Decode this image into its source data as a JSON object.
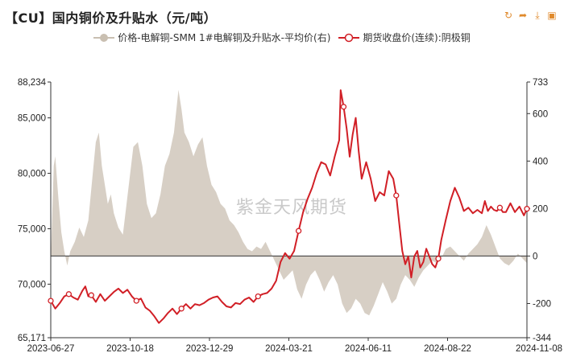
{
  "title": "【CU】国内铜价及升贴水（元/吨）",
  "toolbar": {
    "icons": [
      "refresh-icon",
      "share-icon",
      "download-icon",
      "image-icon"
    ],
    "color": "#e08a2c"
  },
  "watermark": "紫金天风期货",
  "chart_data": {
    "type": "line",
    "legend_position": "top-center",
    "grid": false,
    "x_tick_labels": [
      "2023-06-27",
      "2023-10-18",
      "2023-12-29",
      "2024-03-21",
      "2024-06-11",
      "2024-08-22",
      "2024-11-08"
    ],
    "left_axis": {
      "ylim": [
        65171,
        88234
      ],
      "tick_labels": [
        "65,171",
        "70,000",
        "75,000",
        "80,000",
        "85,000",
        "88,234"
      ]
    },
    "right_axis": {
      "ylim": [
        -344,
        733
      ],
      "tick_labels": [
        "-344",
        "-200",
        "0",
        "200",
        "400",
        "600",
        "733"
      ]
    },
    "series": [
      {
        "name": "价格-电解铜-SMM 1#电解铜及升贴水-平均价(右)",
        "type": "area",
        "axis": "right",
        "color": "#c9bfb1",
        "points": [
          [
            0,
            -20
          ],
          [
            2,
            380
          ],
          [
            3,
            420
          ],
          [
            5,
            250
          ],
          [
            7,
            100
          ],
          [
            9,
            20
          ],
          [
            11,
            -40
          ],
          [
            13,
            20
          ],
          [
            16,
            60
          ],
          [
            19,
            120
          ],
          [
            22,
            80
          ],
          [
            25,
            150
          ],
          [
            28,
            350
          ],
          [
            30,
            480
          ],
          [
            32,
            520
          ],
          [
            34,
            380
          ],
          [
            36,
            300
          ],
          [
            38,
            220
          ],
          [
            40,
            260
          ],
          [
            42,
            180
          ],
          [
            45,
            120
          ],
          [
            48,
            90
          ],
          [
            52,
            300
          ],
          [
            55,
            460
          ],
          [
            58,
            480
          ],
          [
            61,
            380
          ],
          [
            64,
            220
          ],
          [
            67,
            160
          ],
          [
            70,
            180
          ],
          [
            73,
            260
          ],
          [
            76,
            380
          ],
          [
            79,
            430
          ],
          [
            82,
            520
          ],
          [
            85,
            700
          ],
          [
            87,
            620
          ],
          [
            89,
            520
          ],
          [
            92,
            480
          ],
          [
            95,
            420
          ],
          [
            98,
            470
          ],
          [
            101,
            500
          ],
          [
            104,
            380
          ],
          [
            107,
            300
          ],
          [
            110,
            270
          ],
          [
            113,
            220
          ],
          [
            116,
            200
          ],
          [
            119,
            150
          ],
          [
            122,
            130
          ],
          [
            125,
            100
          ],
          [
            128,
            60
          ],
          [
            131,
            30
          ],
          [
            134,
            20
          ],
          [
            137,
            40
          ],
          [
            140,
            30
          ],
          [
            143,
            60
          ],
          [
            146,
            20
          ],
          [
            149,
            -20
          ],
          [
            152,
            -60
          ],
          [
            155,
            -100
          ],
          [
            158,
            -80
          ],
          [
            161,
            -60
          ],
          [
            164,
            -140
          ],
          [
            167,
            -180
          ],
          [
            170,
            -120
          ],
          [
            173,
            -80
          ],
          [
            176,
            -60
          ],
          [
            179,
            -100
          ],
          [
            182,
            -150
          ],
          [
            185,
            -110
          ],
          [
            188,
            -80
          ],
          [
            191,
            -120
          ],
          [
            194,
            -200
          ],
          [
            197,
            -240
          ],
          [
            200,
            -220
          ],
          [
            203,
            -180
          ],
          [
            206,
            -200
          ],
          [
            209,
            -240
          ],
          [
            212,
            -250
          ],
          [
            215,
            -210
          ],
          [
            218,
            -160
          ],
          [
            221,
            -110
          ],
          [
            224,
            -150
          ],
          [
            227,
            -200
          ],
          [
            230,
            -180
          ],
          [
            233,
            -120
          ],
          [
            236,
            -80
          ],
          [
            239,
            -100
          ],
          [
            242,
            -130
          ],
          [
            245,
            -90
          ],
          [
            248,
            -60
          ],
          [
            251,
            -40
          ],
          [
            254,
            -20
          ],
          [
            257,
            -30
          ],
          [
            260,
            -10
          ],
          [
            263,
            30
          ],
          [
            266,
            40
          ],
          [
            269,
            20
          ],
          [
            272,
            0
          ],
          [
            275,
            -20
          ],
          [
            278,
            10
          ],
          [
            281,
            30
          ],
          [
            284,
            50
          ],
          [
            287,
            80
          ],
          [
            290,
            130
          ],
          [
            293,
            90
          ],
          [
            296,
            40
          ],
          [
            299,
            -10
          ],
          [
            302,
            -30
          ],
          [
            305,
            -40
          ],
          [
            308,
            -20
          ],
          [
            311,
            10
          ],
          [
            314,
            -10
          ],
          [
            317,
            -30
          ]
        ]
      },
      {
        "name": "期货收盘价(连续):阴极铜",
        "type": "line",
        "axis": "left",
        "color": "#d11f26",
        "points": [
          [
            0,
            68500
          ],
          [
            3,
            67800
          ],
          [
            6,
            68300
          ],
          [
            9,
            68900
          ],
          [
            12,
            69100
          ],
          [
            15,
            68800
          ],
          [
            18,
            68600
          ],
          [
            21,
            69400
          ],
          [
            23,
            69800
          ],
          [
            25,
            68900
          ],
          [
            27,
            69000
          ],
          [
            30,
            68400
          ],
          [
            33,
            69100
          ],
          [
            36,
            68500
          ],
          [
            39,
            68900
          ],
          [
            42,
            69300
          ],
          [
            45,
            69600
          ],
          [
            48,
            69200
          ],
          [
            51,
            69500
          ],
          [
            54,
            68900
          ],
          [
            57,
            68500
          ],
          [
            60,
            68700
          ],
          [
            63,
            67900
          ],
          [
            66,
            67600
          ],
          [
            69,
            67100
          ],
          [
            72,
            66500
          ],
          [
            75,
            66900
          ],
          [
            78,
            67400
          ],
          [
            81,
            67800
          ],
          [
            84,
            67300
          ],
          [
            87,
            67800
          ],
          [
            90,
            68200
          ],
          [
            93,
            67800
          ],
          [
            96,
            68200
          ],
          [
            99,
            68100
          ],
          [
            102,
            68300
          ],
          [
            105,
            68600
          ],
          [
            108,
            68800
          ],
          [
            111,
            68900
          ],
          [
            114,
            68400
          ],
          [
            117,
            68000
          ],
          [
            120,
            67900
          ],
          [
            123,
            68300
          ],
          [
            126,
            68200
          ],
          [
            129,
            68600
          ],
          [
            132,
            68800
          ],
          [
            135,
            68400
          ],
          [
            138,
            68900
          ],
          [
            141,
            69100
          ],
          [
            144,
            69200
          ],
          [
            147,
            69600
          ],
          [
            150,
            70300
          ],
          [
            153,
            72000
          ],
          [
            156,
            72800
          ],
          [
            159,
            72300
          ],
          [
            162,
            73000
          ],
          [
            165,
            74800
          ],
          [
            168,
            76500
          ],
          [
            171,
            77700
          ],
          [
            174,
            78700
          ],
          [
            177,
            80000
          ],
          [
            180,
            81000
          ],
          [
            183,
            80800
          ],
          [
            186,
            79800
          ],
          [
            189,
            81500
          ],
          [
            192,
            83000
          ],
          [
            193,
            87500
          ],
          [
            195,
            86000
          ],
          [
            197,
            84000
          ],
          [
            199,
            81500
          ],
          [
            201,
            83500
          ],
          [
            203,
            85000
          ],
          [
            205,
            82000
          ],
          [
            207,
            79500
          ],
          [
            210,
            81000
          ],
          [
            213,
            79500
          ],
          [
            216,
            77500
          ],
          [
            219,
            78300
          ],
          [
            222,
            78000
          ],
          [
            225,
            80200
          ],
          [
            228,
            79500
          ],
          [
            230,
            78000
          ],
          [
            232,
            75500
          ],
          [
            234,
            73000
          ],
          [
            236,
            71800
          ],
          [
            238,
            72500
          ],
          [
            240,
            70600
          ],
          [
            242,
            72500
          ],
          [
            244,
            73000
          ],
          [
            246,
            71500
          ],
          [
            248,
            72000
          ],
          [
            250,
            73200
          ],
          [
            252,
            72500
          ],
          [
            254,
            71800
          ],
          [
            256,
            71500
          ],
          [
            258,
            72300
          ],
          [
            260,
            74000
          ],
          [
            263,
            75800
          ],
          [
            266,
            77500
          ],
          [
            269,
            78700
          ],
          [
            272,
            77800
          ],
          [
            275,
            76600
          ],
          [
            278,
            76900
          ],
          [
            281,
            76400
          ],
          [
            284,
            76700
          ],
          [
            287,
            76400
          ],
          [
            289,
            77500
          ],
          [
            291,
            76600
          ],
          [
            293,
            77000
          ],
          [
            295,
            76700
          ],
          [
            297,
            76600
          ],
          [
            299,
            76900
          ],
          [
            301,
            76500
          ],
          [
            303,
            76500
          ],
          [
            306,
            77300
          ],
          [
            309,
            76500
          ],
          [
            312,
            77000
          ],
          [
            315,
            76200
          ],
          [
            317,
            76800
          ]
        ],
        "marker_indices": [
          0,
          13,
          28,
          56,
          88,
          138,
          165,
          196,
          230,
          258,
          300,
          317
        ]
      }
    ]
  }
}
